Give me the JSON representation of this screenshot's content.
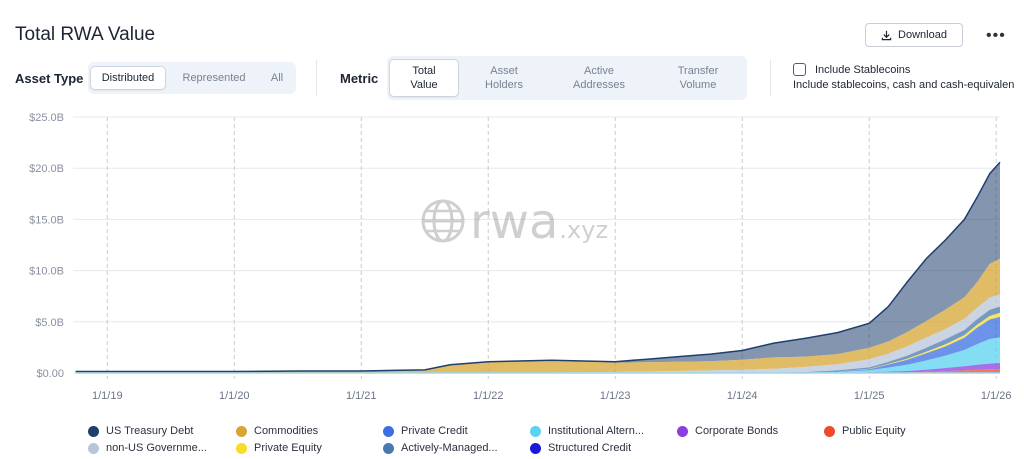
{
  "header": {
    "title": "Total RWA Value",
    "download_label": "Download",
    "more_label": "•••"
  },
  "asset_type": {
    "label": "Asset Type",
    "options": [
      "Distributed",
      "Represented",
      "All"
    ],
    "selected": "Distributed"
  },
  "metric": {
    "label": "Metric",
    "options": [
      [
        "Total",
        "Value"
      ],
      [
        "Asset",
        "Holders"
      ],
      [
        "Active",
        "Addresses"
      ],
      [
        "Transfer",
        "Volume"
      ]
    ],
    "selected": 0
  },
  "stablecoins": {
    "label": "Include Stablecoins",
    "description": "Include stablecoins, cash and cash-equivalents",
    "checked": false
  },
  "watermark": {
    "main": "rwa",
    "suffix": ".xyz"
  },
  "colors": {
    "us_treasury": "#1f3f6e",
    "commodities": "#d6a534",
    "private_credit": "#3b6fe0",
    "institutional_alt": "#59d3f0",
    "corporate_bonds": "#8a3fe0",
    "public_equity": "#f04a2a",
    "non_us_gov": "#b8c6d9",
    "private_equity": "#f7dd2a",
    "actively_managed": "#4a78b0",
    "structured_credit": "#1a1ad6"
  },
  "legend": [
    {
      "name": "US Treasury Debt",
      "color": "#1f3f6e"
    },
    {
      "name": "Commodities",
      "color": "#d6a534"
    },
    {
      "name": "Private Credit",
      "color": "#3b6fe0"
    },
    {
      "name": "Institutional Altern...",
      "color": "#59d3f0"
    },
    {
      "name": "Corporate Bonds",
      "color": "#8a3fe0"
    },
    {
      "name": "Public Equity",
      "color": "#f04a2a"
    },
    {
      "name": "non-US Governme...",
      "color": "#b8c6d9"
    },
    {
      "name": "Private Equity",
      "color": "#f7dd2a"
    },
    {
      "name": "Actively-Managed...",
      "color": "#4a78b0"
    },
    {
      "name": "Structured Credit",
      "color": "#1a1ad6"
    }
  ],
  "chart_data": {
    "type": "area",
    "stacked": true,
    "title": "Total RWA Value",
    "xlabel": "",
    "ylabel": "",
    "ylim": [
      0,
      25
    ],
    "y_unit": "B",
    "yticks": [
      "$0.00",
      "$5.0B",
      "$10.0B",
      "$15.0B",
      "$20.0B",
      "$25.0B"
    ],
    "ytick_values": [
      0,
      5,
      10,
      15,
      20,
      25
    ],
    "xticks": [
      "1/1/19",
      "1/1/20",
      "1/1/21",
      "1/1/22",
      "1/1/23",
      "1/1/24",
      "1/1/25",
      "1/1/26"
    ],
    "xtick_values": [
      2019,
      2020,
      2021,
      2022,
      2023,
      2024,
      2025,
      2026
    ],
    "xlim": [
      2018.73,
      2026.03
    ],
    "grid": true,
    "legend_position": "bottom",
    "x": [
      2018.75,
      2019.0,
      2019.5,
      2020.0,
      2020.5,
      2021.0,
      2021.25,
      2021.5,
      2021.7,
      2022.0,
      2022.5,
      2023.0,
      2023.25,
      2023.5,
      2023.75,
      2024.0,
      2024.25,
      2024.5,
      2024.75,
      2025.0,
      2025.15,
      2025.3,
      2025.45,
      2025.6,
      2025.75,
      2025.85,
      2025.95,
      2026.03
    ],
    "series": [
      {
        "name": "Structured Credit",
        "color": "#1a1ad6",
        "values": [
          0,
          0,
          0,
          0,
          0,
          0,
          0,
          0,
          0,
          0,
          0,
          0,
          0,
          0,
          0,
          0,
          0,
          0,
          0,
          0,
          0,
          0,
          0.02,
          0.04,
          0.05,
          0.06,
          0.07,
          0.08
        ]
      },
      {
        "name": "Public Equity",
        "color": "#f04a2a",
        "values": [
          0,
          0,
          0,
          0,
          0,
          0,
          0,
          0,
          0,
          0,
          0,
          0,
          0,
          0,
          0,
          0,
          0,
          0,
          0,
          0.02,
          0.03,
          0.05,
          0.1,
          0.15,
          0.2,
          0.25,
          0.3,
          0.3
        ]
      },
      {
        "name": "Corporate Bonds",
        "color": "#8a3fe0",
        "values": [
          0,
          0,
          0,
          0,
          0,
          0,
          0,
          0,
          0,
          0,
          0,
          0,
          0,
          0,
          0,
          0,
          0,
          0,
          0,
          0.05,
          0.1,
          0.15,
          0.2,
          0.3,
          0.4,
          0.5,
          0.55,
          0.6
        ]
      },
      {
        "name": "Institutional Altern...",
        "color": "#59d3f0",
        "values": [
          0,
          0,
          0,
          0,
          0,
          0,
          0,
          0,
          0,
          0,
          0,
          0,
          0,
          0,
          0,
          0,
          0,
          0.05,
          0.1,
          0.2,
          0.4,
          0.6,
          0.9,
          1.2,
          1.6,
          2.0,
          2.4,
          2.5
        ]
      },
      {
        "name": "Private Credit",
        "color": "#3b6fe0",
        "values": [
          0,
          0,
          0,
          0,
          0,
          0,
          0,
          0,
          0,
          0,
          0,
          0,
          0,
          0,
          0,
          0,
          0,
          0,
          0.05,
          0.1,
          0.3,
          0.5,
          0.7,
          0.9,
          1.2,
          1.6,
          1.9,
          2.0
        ]
      },
      {
        "name": "Private Equity",
        "color": "#f7dd2a",
        "values": [
          0,
          0,
          0,
          0,
          0,
          0,
          0,
          0,
          0,
          0,
          0,
          0,
          0,
          0,
          0,
          0,
          0,
          0,
          0,
          0.03,
          0.05,
          0.1,
          0.15,
          0.2,
          0.25,
          0.3,
          0.35,
          0.4
        ]
      },
      {
        "name": "Actively-Managed...",
        "color": "#4a78b0",
        "values": [
          0,
          0,
          0,
          0,
          0,
          0,
          0,
          0,
          0,
          0,
          0,
          0,
          0,
          0,
          0,
          0,
          0.02,
          0.05,
          0.1,
          0.15,
          0.2,
          0.3,
          0.4,
          0.5,
          0.5,
          0.55,
          0.6,
          0.6
        ]
      },
      {
        "name": "non-US Governme...",
        "color": "#b8c6d9",
        "values": [
          0,
          0,
          0,
          0,
          0,
          0,
          0,
          0,
          0,
          0,
          0.05,
          0.1,
          0.15,
          0.2,
          0.25,
          0.3,
          0.4,
          0.5,
          0.6,
          0.8,
          0.8,
          0.9,
          1.0,
          1.0,
          1.1,
          1.1,
          1.2,
          1.2
        ]
      },
      {
        "name": "Commodities",
        "color": "#d6a534",
        "values": [
          0.15,
          0.15,
          0.15,
          0.15,
          0.2,
          0.2,
          0.25,
          0.3,
          0.8,
          1.1,
          1.2,
          0.9,
          0.9,
          0.9,
          0.9,
          1.0,
          1.1,
          1.0,
          1.0,
          1.1,
          1.2,
          1.4,
          1.6,
          1.9,
          2.1,
          2.5,
          3.3,
          3.5
        ]
      },
      {
        "name": "US Treasury Debt",
        "color": "#1f3f6e",
        "values": [
          0,
          0,
          0,
          0,
          0,
          0,
          0,
          0,
          0,
          0,
          0,
          0.1,
          0.3,
          0.5,
          0.7,
          0.9,
          1.4,
          1.8,
          2.1,
          2.4,
          3.4,
          4.9,
          6.1,
          6.8,
          7.6,
          8.3,
          8.8,
          9.4
        ]
      }
    ]
  }
}
